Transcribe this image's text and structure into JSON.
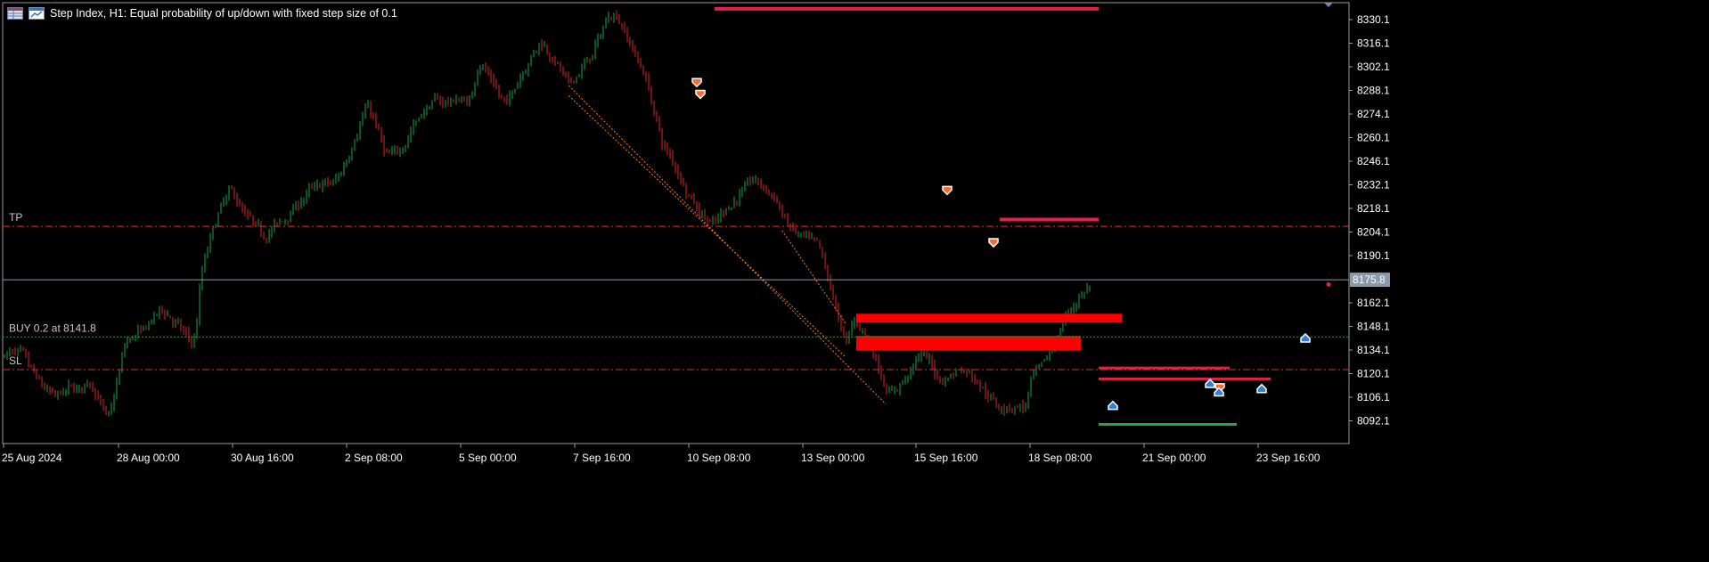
{
  "header": {
    "title": "Step Index, H1:  Equal probability of up/down with fixed step size of 0.1"
  },
  "colors": {
    "background": "#000000",
    "bull": "#16a34a",
    "bear": "#dc2626",
    "tp_line": "#d9342c",
    "sl_line": "#d9342c",
    "buy_line": "#2f8f3a",
    "price_line": "#8a9aa8",
    "zone": "#ff0000",
    "zone_line": "#e0224a",
    "support": "#1ea84a",
    "arrow_sell": "#ff6a2a",
    "arrow_buy": "#2f7fe0"
  },
  "y_axis": {
    "ticks": [
      "8330.1",
      "8316.1",
      "8302.1",
      "8288.1",
      "8274.1",
      "8260.1",
      "8246.1",
      "8232.1",
      "8218.1",
      "8204.1",
      "8190.1",
      "8162.1",
      "8148.1",
      "8134.1",
      "8120.1",
      "8106.1",
      "8092.1"
    ],
    "current_price_label": "8175.8"
  },
  "x_axis": {
    "ticks": [
      "25 Aug 2024",
      "28 Aug 00:00",
      "30 Aug 16:00",
      "2 Sep 08:00",
      "5 Sep 00:00",
      "7 Sep 16:00",
      "10 Sep 08:00",
      "13 Sep 00:00",
      "15 Sep 16:00",
      "18 Sep 08:00",
      "21 Sep 00:00",
      "23 Sep 16:00"
    ]
  },
  "levels": {
    "tp_label": "TP",
    "buy_label": "BUY 0.2 at 8141.8",
    "sl_label": "SL",
    "tp_price": 8207.5,
    "buy_price": 8141.8,
    "sl_price": 8122.5,
    "current_price": 8175.8
  },
  "chart_data": {
    "type": "candlestick",
    "symbol": "Step Index",
    "timeframe": "H1",
    "x_start": "25 Aug 2024",
    "x_end": "24 Sep 2024",
    "ylim": [
      8084,
      8339
    ],
    "price_path": [
      [
        "25 Aug 2024",
        8130
      ],
      [
        "26 Aug 2024",
        8104
      ],
      [
        "27 Aug 2024",
        8118
      ],
      [
        "28 Aug 00:00",
        8088
      ],
      [
        "28 Aug 2024",
        8142
      ],
      [
        "29 Aug 2024",
        8156
      ],
      [
        "30 Aug 2024",
        8140
      ],
      [
        "30 Aug 16:00",
        8185
      ],
      [
        "31 Aug 2024",
        8232
      ],
      [
        "1 Sep 2024",
        8198
      ],
      [
        "2 Sep 08:00",
        8222
      ],
      [
        "3 Sep 2024",
        8234
      ],
      [
        "4 Sep 2024",
        8278
      ],
      [
        "5 Sep 00:00",
        8250
      ],
      [
        "5 Sep 2024",
        8256
      ],
      [
        "6 Sep 2024",
        8286
      ],
      [
        "7 Sep 2024",
        8278
      ],
      [
        "7 Sep 16:00",
        8310
      ],
      [
        "8 Sep 2024",
        8278
      ],
      [
        "9 Sep 2024",
        8322
      ],
      [
        "10 Sep 2024",
        8295
      ],
      [
        "10 Sep 08:00",
        8286
      ],
      [
        "11 Sep 2024",
        8335
      ],
      [
        "12 Sep 2024",
        8300
      ],
      [
        "13 Sep 00:00",
        8252
      ],
      [
        "14 Sep 2024",
        8205
      ],
      [
        "15 Sep 2024",
        8238
      ],
      [
        "15 Sep 16:00",
        8236
      ],
      [
        "16 Sep 2024",
        8213
      ],
      [
        "17 Sep 2024",
        8193
      ],
      [
        "18 Sep 2024",
        8158
      ],
      [
        "18 Sep 08:00",
        8137
      ],
      [
        "19 Sep 2024",
        8108
      ],
      [
        "20 Sep 2024",
        8130
      ],
      [
        "21 Sep 00:00",
        8118
      ],
      [
        "21 Sep 2024",
        8124
      ],
      [
        "22 Sep 2024",
        8106
      ],
      [
        "23 Sep 2024",
        8096
      ],
      [
        "23 Sep 16:00",
        8118
      ],
      [
        "24 Sep 2024",
        8146
      ],
      [
        "24 Sep 2024",
        8176
      ]
    ],
    "horizontal_levels": [
      {
        "price": 8336.5,
        "from": "10 Sep 2024",
        "to": "24 Sep 2024",
        "color": "zone_line"
      },
      {
        "price": 8211.5,
        "from": "16 Sep 2024",
        "to": "24 Sep 2024",
        "color": "zone_line"
      },
      {
        "price": 8123.5,
        "from": "23 Sep 2024",
        "to": "24 Sep 2024",
        "color": "zone_line"
      },
      {
        "price": 8117.0,
        "from": "22 Sep 2024",
        "to": "24 Sep 2024",
        "color": "zone_line"
      },
      {
        "price": 8090.0,
        "from": "22 Sep 2024",
        "to": "24 Sep 2024",
        "color": "support"
      }
    ],
    "zones": [
      {
        "top": 8155.6,
        "bottom": 8150.4,
        "from": "18 Sep 08:00",
        "to": "24 Sep 2024"
      },
      {
        "top": 8142.5,
        "bottom": 8133.7,
        "from": "18 Sep 08:00",
        "to": "24 Sep 2024"
      }
    ],
    "sell_arrows": [
      [
        "10 Sep 2024",
        8293
      ],
      [
        "10 Sep 2024",
        8286
      ],
      [
        "15 Sep 16:00",
        8229
      ],
      [
        "16 Sep 2024",
        8198
      ],
      [
        "22 Sep 2024",
        8112
      ]
    ],
    "buy_arrows": [
      [
        "19 Sep 2024",
        8101
      ],
      [
        "22 Sep 2024",
        8114
      ],
      [
        "22 Sep 2024",
        8109
      ],
      [
        "23 Sep 2024",
        8111
      ],
      [
        "24 Sep 2024",
        8141
      ]
    ],
    "trend_lines": [
      {
        "from": [
          "10 Sep 08:00",
          8291
        ],
        "to": [
          "19 Sep 2024",
          8102
        ]
      },
      {
        "from": [
          "10 Sep 08:00",
          8285
        ],
        "to": [
          "18 Sep 08:00",
          8130
        ]
      },
      {
        "from": [
          "16 Sep 2024",
          8205
        ],
        "to": [
          "18 Sep 08:00",
          8150
        ]
      }
    ]
  }
}
